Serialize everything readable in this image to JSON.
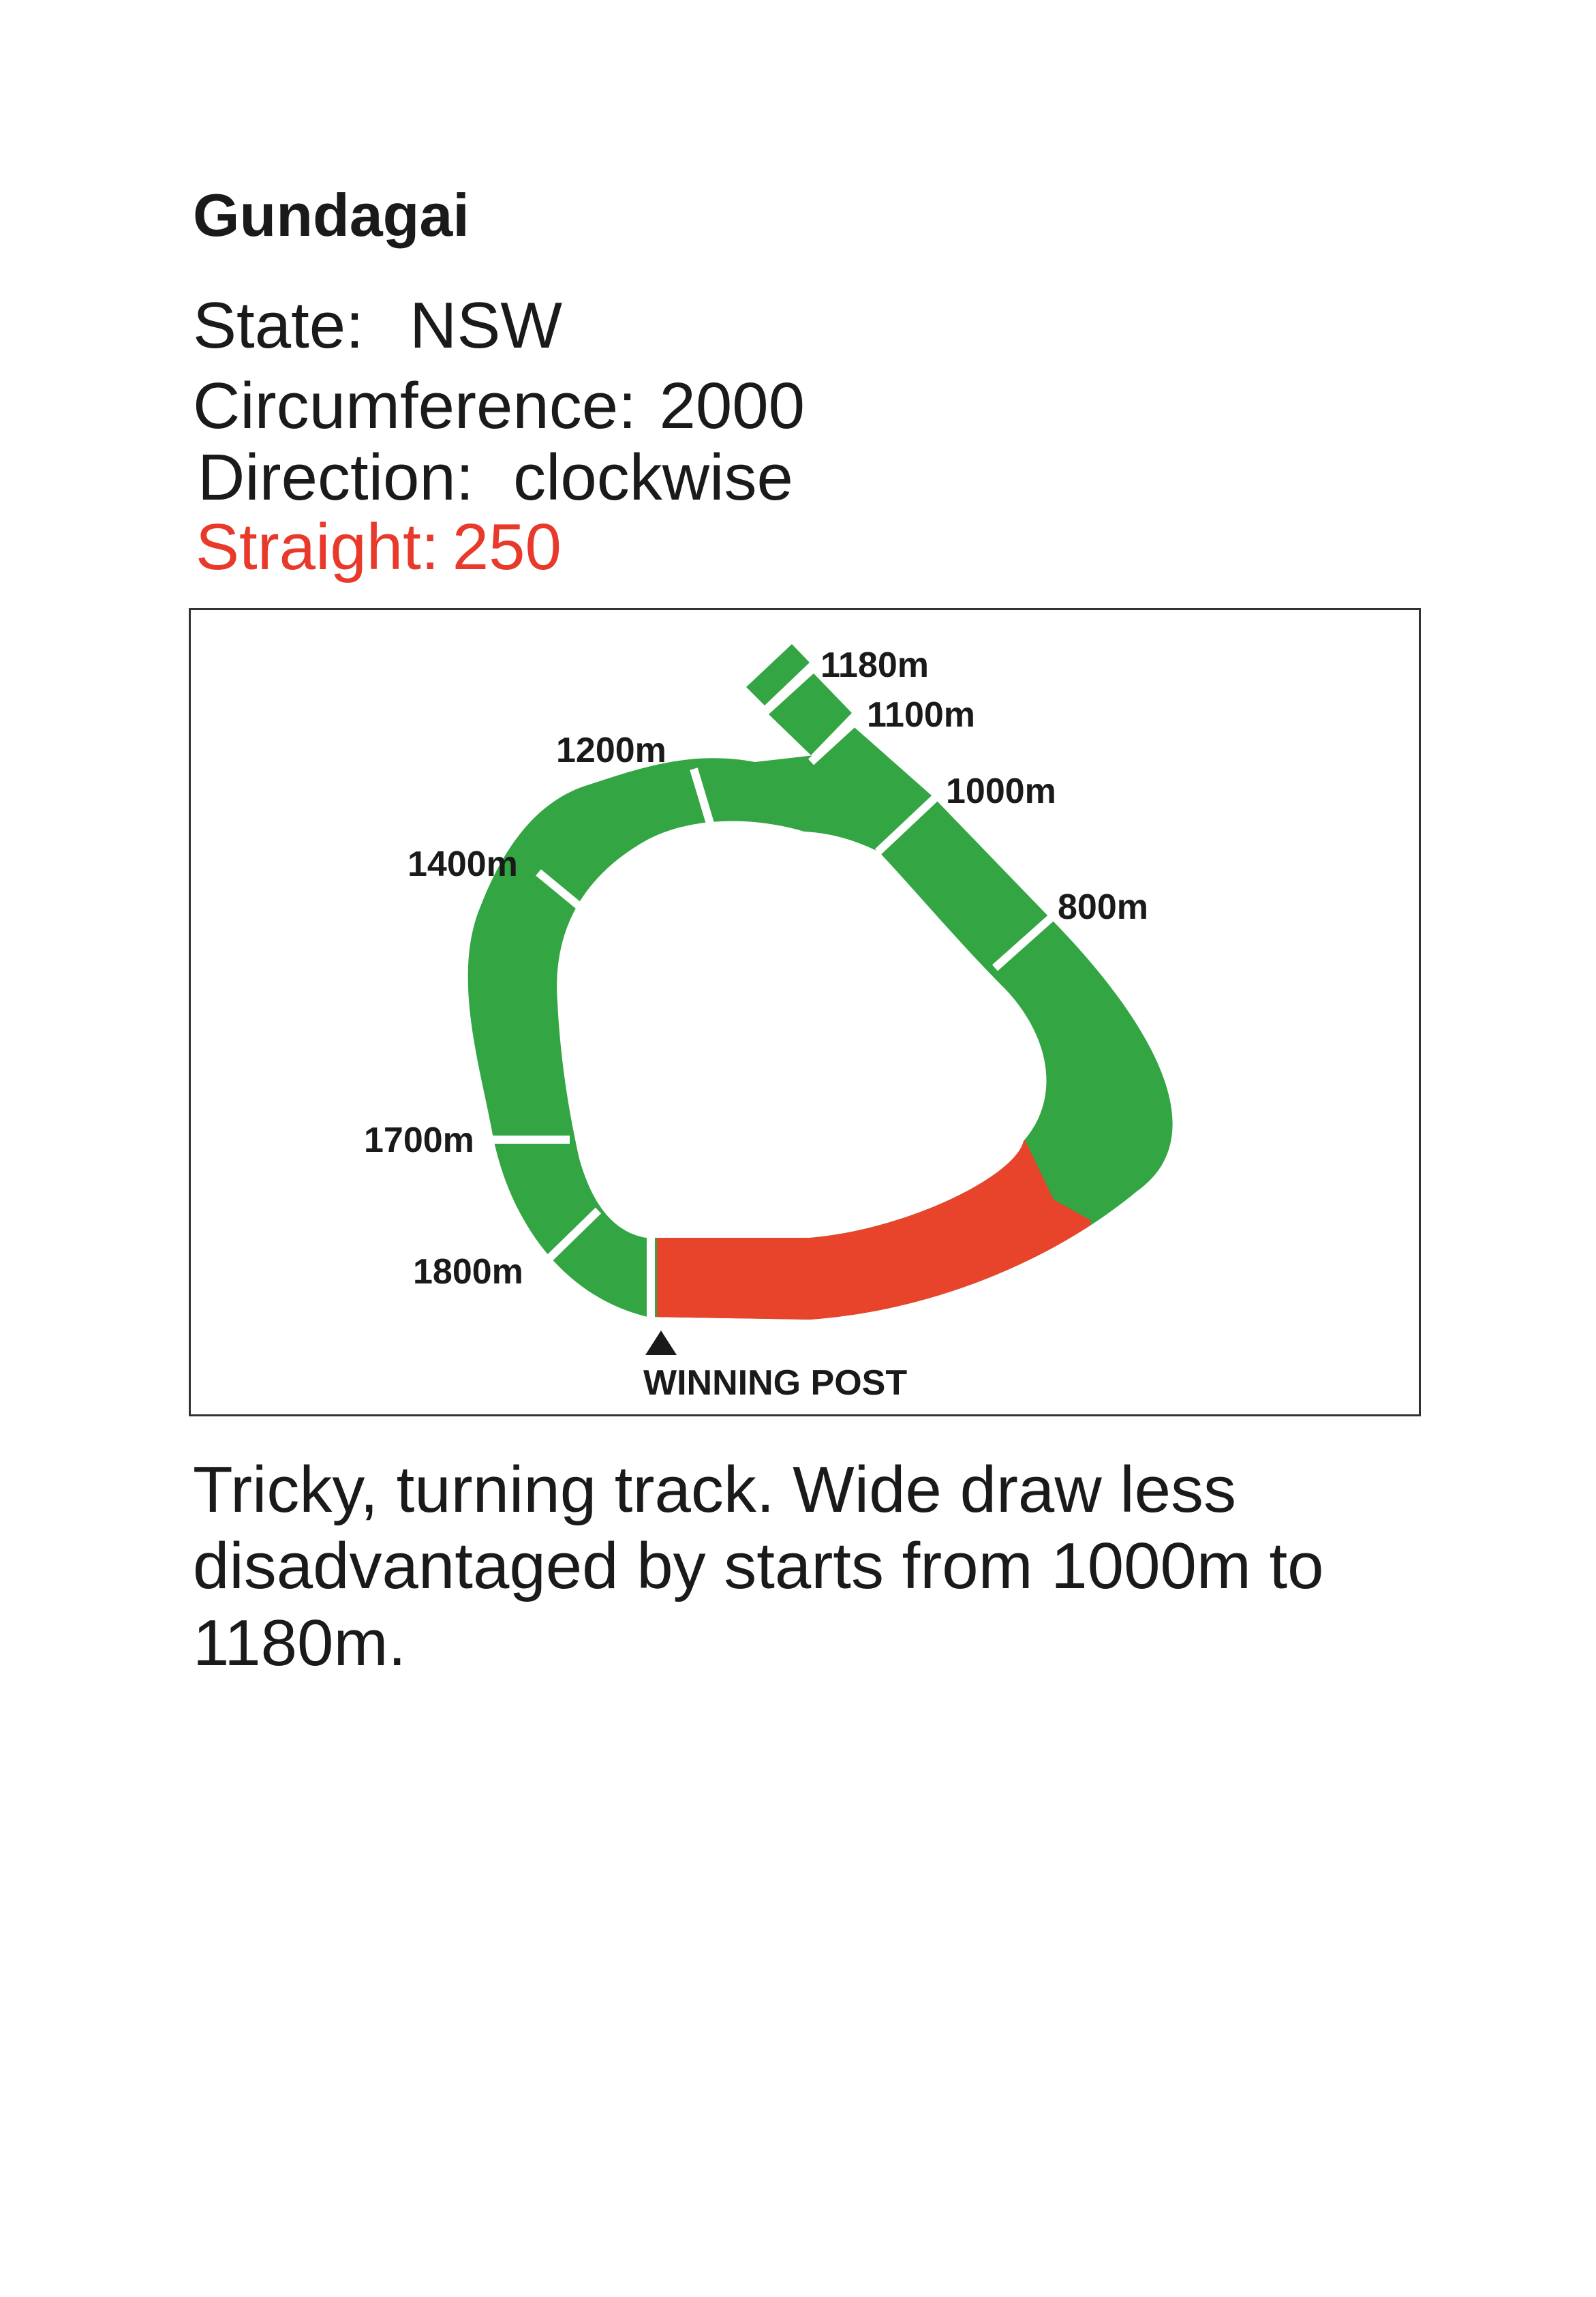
{
  "course": {
    "name": "Gundagai",
    "state_label": "State:",
    "state_value": "NSW",
    "circumference_label": "Circumference:",
    "circumference_value": "2000",
    "direction_label": "Direction:",
    "direction_value": "clockwise",
    "straight_label": "Straight:",
    "straight_value": "250"
  },
  "map": {
    "track_color": "#33a543",
    "straight_color": "#e8432b",
    "markers": [
      "1180m",
      "1100m",
      "1000m",
      "800m",
      "1200m",
      "1400m",
      "1700m",
      "1800m"
    ],
    "winning_post_label": "WINNING POST",
    "winning_post_icon": "triangle-up-icon"
  },
  "description": "Tricky, turning track. Wide draw less disadvantaged by starts from 1000m to 1180m."
}
